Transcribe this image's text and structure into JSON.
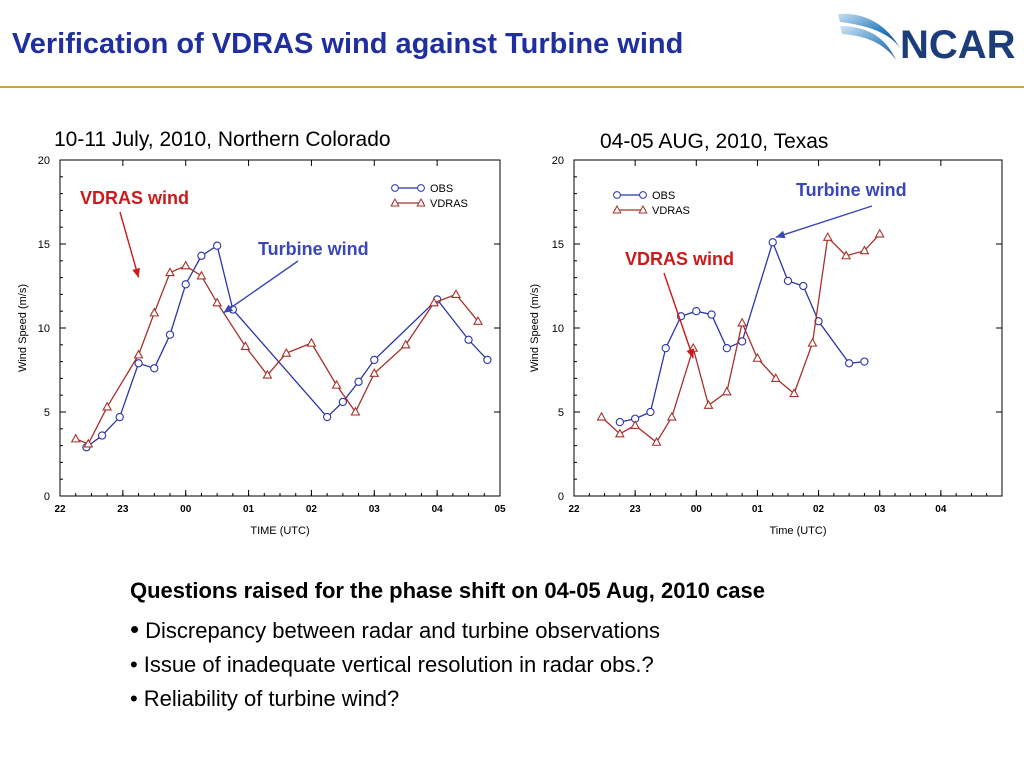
{
  "header": {
    "title": "Verification of VDRAS wind against Turbine wind",
    "logo_text": "NCAR"
  },
  "colors": {
    "title": "#1f2fa0",
    "obs": "#2b35a8",
    "vdras": "#a8302a",
    "annotation_vdras": "#cc1a1a",
    "annotation_turbine": "#3a47b8",
    "rule": "#c9a24a"
  },
  "panels": [
    {
      "subtitle": "10-11 July, 2010, Northern Colorado"
    },
    {
      "subtitle": "04-05 AUG, 2010, Texas"
    }
  ],
  "chart_data": [
    {
      "type": "line",
      "xlabel": "TIME (UTC)",
      "ylabel": "Wind Speed (m/s)",
      "ylim": [
        0,
        20
      ],
      "yticks": [
        0,
        5,
        10,
        15,
        20
      ],
      "xlim": [
        22,
        29
      ],
      "xticks": [
        22,
        23,
        24,
        25,
        26,
        27,
        28,
        29
      ],
      "xtick_labels": [
        "22",
        "23",
        "00",
        "01",
        "02",
        "03",
        "04",
        "05"
      ],
      "legend": {
        "placement": "top-right"
      },
      "series": [
        {
          "name": "OBS",
          "marker": "circle",
          "x": [
            22.42,
            22.67,
            22.95,
            23.25,
            23.5,
            23.75,
            24.0,
            24.25,
            24.5,
            24.75,
            26.25,
            26.5,
            26.75,
            27.0,
            28.0,
            28.5,
            28.8
          ],
          "y": [
            2.9,
            3.6,
            4.7,
            7.9,
            7.6,
            9.6,
            12.6,
            14.3,
            14.9,
            11.1,
            4.7,
            5.6,
            6.8,
            8.1,
            11.7,
            9.3,
            8.1
          ]
        },
        {
          "name": "VDRAS",
          "marker": "triangle",
          "x": [
            22.25,
            22.45,
            22.75,
            23.25,
            23.5,
            23.75,
            24.0,
            24.25,
            24.5,
            24.95,
            25.3,
            25.6,
            26.0,
            26.4,
            26.7,
            27.0,
            27.5,
            27.95,
            28.3,
            28.65
          ],
          "y": [
            3.4,
            3.1,
            5.3,
            8.4,
            10.9,
            13.3,
            13.7,
            13.1,
            11.5,
            8.9,
            7.2,
            8.5,
            9.1,
            6.6,
            5.0,
            7.3,
            9.0,
            11.5,
            12.0,
            10.4
          ]
        }
      ],
      "annotations": [
        {
          "text": "VDRAS wind",
          "color": "#cc1a1a",
          "arrow_to": [
            23.25,
            13.0
          ]
        },
        {
          "text": "Turbine wind",
          "color": "#3a47b8",
          "arrow_to": [
            24.6,
            10.9
          ]
        }
      ]
    },
    {
      "type": "line",
      "xlabel": "Time (UTC)",
      "ylabel": "Wind Speed (m/s)",
      "ylim": [
        0,
        20
      ],
      "yticks": [
        0,
        5,
        10,
        15,
        20
      ],
      "xlim": [
        22,
        29
      ],
      "xticks": [
        22,
        23,
        24,
        25,
        26,
        27,
        28,
        29
      ],
      "xtick_labels": [
        "22",
        "23",
        "00",
        "01",
        "02",
        "03",
        "04",
        ""
      ],
      "legend": {
        "placement": "top-left"
      },
      "series": [
        {
          "name": "OBS",
          "marker": "circle",
          "x": [
            22.75,
            23.0,
            23.25,
            23.5,
            23.75,
            24.0,
            24.25,
            24.5,
            24.75,
            25.25,
            25.5,
            25.75,
            26.0,
            26.5,
            26.75
          ],
          "y": [
            4.4,
            4.6,
            5.0,
            8.8,
            10.7,
            11.0,
            10.8,
            8.8,
            9.2,
            15.1,
            12.8,
            12.5,
            10.4,
            7.9,
            8.0
          ]
        },
        {
          "name": "VDRAS",
          "marker": "triangle",
          "x": [
            22.45,
            22.75,
            23.0,
            23.35,
            23.6,
            23.95,
            24.2,
            24.5,
            24.75,
            25.0,
            25.3,
            25.6,
            25.9,
            26.15,
            26.45,
            26.75,
            27.0
          ],
          "y": [
            4.7,
            3.7,
            4.2,
            3.2,
            4.7,
            8.8,
            5.4,
            6.2,
            10.3,
            8.2,
            7.0,
            6.1,
            9.1,
            15.4,
            14.3,
            14.6,
            15.6
          ]
        }
      ],
      "annotations": [
        {
          "text": "Turbine wind",
          "color": "#3a47b8",
          "arrow_to": [
            25.3,
            15.4
          ]
        },
        {
          "text": "VDRAS wind",
          "color": "#cc1a1a",
          "arrow_to": [
            23.95,
            8.2
          ]
        }
      ]
    }
  ],
  "questions": {
    "heading": "Questions raised for the phase shift on 04-05 Aug, 2010 case",
    "bullet": "•",
    "items": [
      "Discrepancy between radar and turbine observations",
      "Issue of inadequate vertical resolution in radar obs.?",
      "Reliability of turbine wind?"
    ]
  }
}
